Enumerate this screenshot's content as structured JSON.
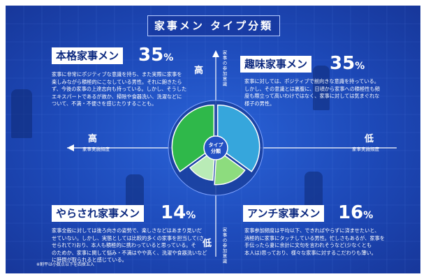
{
  "title": "家事メン タイプ分類",
  "center_label": [
    "タイプ",
    "分類"
  ],
  "axes": {
    "vertical_label": "家事の参加意識",
    "horizontal_label": "家事実施頻度",
    "high": "高",
    "low": "低"
  },
  "types": {
    "honkaku": {
      "name": "本格家事メン",
      "percent": "35",
      "desc": [
        "家事に非常にポジティブな意識を持ち、また実際に家事を",
        "楽しみながら積極的にこなしている男性。それに飽きたら",
        "ず、今後の家事の上達志向も持っている。しかし、そうした",
        "エキスパートであるが故か、掃除や食器洗い、洗濯などに",
        "ついて、不満・不便さを感じたりすることも。"
      ]
    },
    "shumi": {
      "name": "趣味家事メン",
      "percent": "35",
      "desc": [
        "家事に対しては、ポジティブで前向きな意識を持っている。",
        "しかし、その意識とは裏腹に、日頃から家事への積極性も頻",
        "度も際立って高いわけではなく、家事に対しては気まぐれな",
        "様子の男性。"
      ]
    },
    "yarasare": {
      "name": "やらされ家事メン",
      "percent": "14",
      "desc": [
        "家事全般に対しては後ろ向きの姿勢で、楽しさなどはあまり見いだ",
        "せていない。しかし、実態としては比較的多くの家事を担当して(さ",
        "せられて?)おり、本人も積極的に携わっていると思っている。そ",
        "のためか、家事に関して悩み・不満はやや高く、洗濯や食器洗いなど",
        "に時間が取られると感じている。"
      ]
    },
    "anti": {
      "name": "アンチ家事メン",
      "percent": "16",
      "desc": [
        "家事参加頻度は平均以下、できればやらずに済ませたいと、",
        "消極的に家事にタッチしている男性。忙しさもあるが、家事を",
        "手伝ったら妻に余計に文句を言われそうなど(少なくとも",
        "本人は)思っており、様々な家事に対するこだわりも薄い。"
      ]
    }
  },
  "percent_unit": "%",
  "footnote": "※割平は小数点以下を四捨五入",
  "colors": {
    "honkaku": "#2fb84a",
    "shumi": "#36a6dc",
    "yarasare": "#b9ebb6",
    "anti": "#8ddc7e",
    "background": "#1d49b8"
  },
  "chart_data": {
    "type": "pie",
    "categories": [
      "趣味家事メン",
      "アンチ家事メン",
      "やらされ家事メン",
      "本格家事メン"
    ],
    "values": [
      35,
      16,
      14,
      35
    ]
  }
}
